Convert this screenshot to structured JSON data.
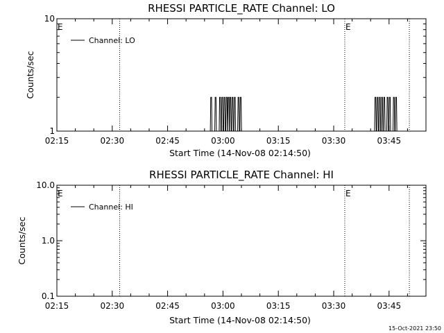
{
  "chart_data": [
    {
      "type": "line",
      "title": "RHESSI PARTICLE_RATE Channel: LO",
      "xlabel": "Start Time (14-Nov-08 02:14:50)",
      "ylabel": "Counts/sec",
      "yscale": "log",
      "ylim": [
        1,
        10
      ],
      "ytick_labels": [
        "1",
        "10"
      ],
      "xlim_minutes": [
        0,
        100
      ],
      "xtick_labels": [
        "02:15",
        "02:30",
        "02:45",
        "03:00",
        "03:15",
        "03:30",
        "03:45"
      ],
      "xtick_minutes": [
        0,
        15,
        30,
        45,
        60,
        75,
        90
      ],
      "legend": [
        "Channel: LO"
      ],
      "legend_loc": "top-left",
      "vlines_minutes": [
        17,
        78,
        95.5
      ],
      "event_markers": [
        {
          "minute": 0,
          "label": "E"
        },
        {
          "minute": 78,
          "label": "E"
        }
      ],
      "series": [
        {
          "name": "Channel: LO",
          "spikes_minutes": [
            41.8,
            43.0,
            44.2,
            44.8,
            45.4,
            46.0,
            46.5,
            47.0,
            47.6,
            48.2,
            49.2,
            49.8,
            86.3,
            86.9,
            87.5,
            88.1,
            88.7,
            89.6,
            90.2,
            91.3,
            91.9
          ],
          "baseline": 1,
          "peak": 2
        }
      ]
    },
    {
      "type": "line",
      "title": "RHESSI PARTICLE_RATE Channel: HI",
      "xlabel": "Start Time (14-Nov-08 02:14:50)",
      "ylabel": "Counts/sec",
      "yscale": "log",
      "ylim": [
        0.1,
        10
      ],
      "ytick_labels": [
        "0.1",
        "1.0",
        "10.0"
      ],
      "xlim_minutes": [
        0,
        100
      ],
      "xtick_labels": [
        "02:15",
        "02:30",
        "02:45",
        "03:00",
        "03:15",
        "03:30",
        "03:45"
      ],
      "xtick_minutes": [
        0,
        15,
        30,
        45,
        60,
        75,
        90
      ],
      "legend": [
        "Channel: HI"
      ],
      "legend_loc": "top-left",
      "vlines_minutes": [
        17,
        78,
        95.5
      ],
      "event_markers": [
        {
          "minute": 0,
          "label": "E"
        },
        {
          "minute": 78,
          "label": "E"
        }
      ],
      "series": [
        {
          "name": "Channel: HI",
          "spikes_minutes": []
        }
      ]
    }
  ],
  "footer": {
    "timestamp": "15-Oct-2021 23:50"
  }
}
